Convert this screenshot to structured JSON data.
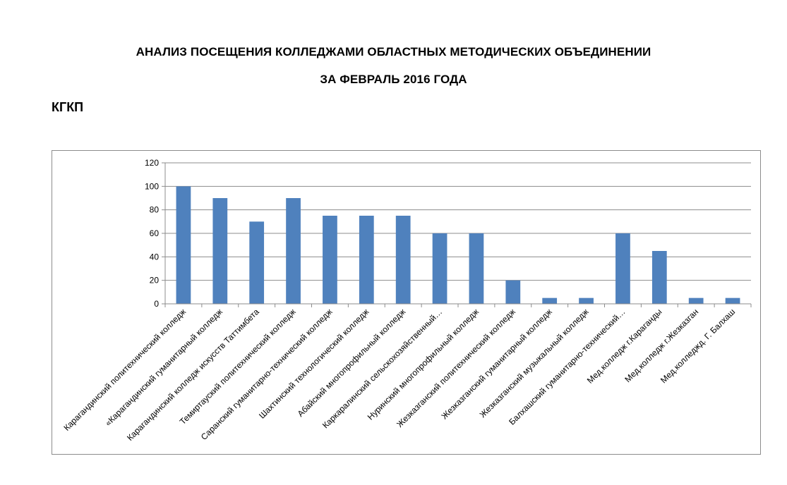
{
  "header": {
    "title_line1": "АНАЛИЗ ПОСЕЩЕНИЯ  КОЛЛЕДЖАМИ ОБЛАСТНЫХ МЕТОДИЧЕСКИХ ОБЪЕДИНЕНИИ",
    "title_line2": "ЗА ФЕВРАЛЬ 2016 ГОДА",
    "subtitle": "КГКП"
  },
  "chart_data": {
    "type": "bar",
    "categories": [
      "Карагандинский политехнический  колледж",
      "«Карагандинский гуманитарный колледж",
      "Карагандинский колледж искусств Таттимбета",
      "Темиртауский  политехнический  колледж",
      "Саранский гуманитарно-технический колледж",
      "Шахтинский технологический колледж",
      "Абайский многопрофильный колледж",
      "Каркаралинский сельскохозяйственный…",
      "Нуринский  многопрофильный колледж",
      "Жезказганский политехнический  колледж",
      "Жезказганский гуманитарный колледж",
      "Жезказганский музыкальный колледж",
      "Балхашский гуманитарно-технический…",
      "Мед.колледж  г.Караганды",
      "Мед.колледж  г.Жезказган",
      "Мед.колледжд.  Г. Балхаш"
    ],
    "values": [
      100,
      90,
      70,
      90,
      75,
      75,
      75,
      60,
      60,
      20,
      5,
      5,
      60,
      45,
      5,
      5
    ],
    "ylim": [
      0,
      120
    ],
    "yticks": [
      "0",
      "20",
      "40",
      "60",
      "80",
      "100",
      "120"
    ],
    "grid": true,
    "legend": "none",
    "bar_color": "#4f81bd"
  }
}
